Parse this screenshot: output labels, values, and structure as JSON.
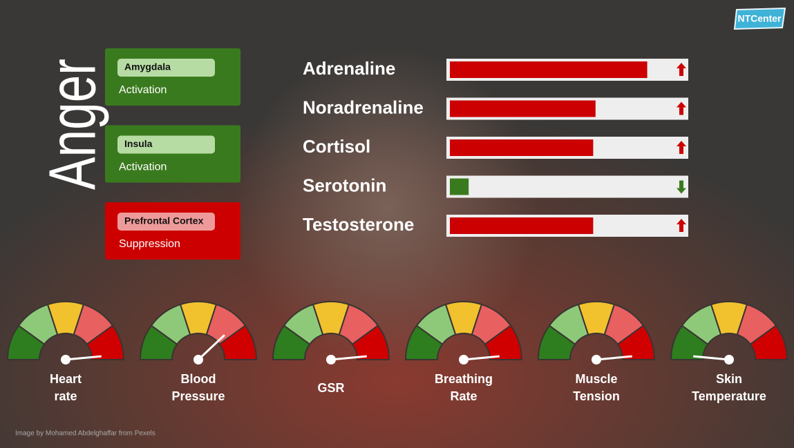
{
  "title": "Anger",
  "logo": "NTCenter",
  "credit": "Image by Mohamed Abdelghaffar from Pexels",
  "regions": [
    {
      "name": "Amygdala",
      "state": "Activation",
      "color": "#3a7a1e",
      "pill_color": "#b6dca4"
    },
    {
      "name": "Insula",
      "state": "Activation",
      "color": "#3a7a1e",
      "pill_color": "#b6dca4"
    },
    {
      "name": "Prefrontal Cortex",
      "state": "Suppression",
      "color": "#cc0000",
      "pill_color": "#ef9a9a"
    }
  ],
  "hormones": [
    {
      "name": "Adrenaline",
      "value": 84,
      "trend": "up",
      "color": "#cc0000"
    },
    {
      "name": "Noradrenaline",
      "value": 62,
      "trend": "up",
      "color": "#cc0000"
    },
    {
      "name": "Cortisol",
      "value": 61,
      "trend": "up",
      "color": "#cc0000"
    },
    {
      "name": "Serotonin",
      "value": 8,
      "trend": "down",
      "color": "#3a7a1e"
    },
    {
      "name": "Testosterone",
      "value": 61,
      "trend": "up",
      "color": "#cc0000"
    }
  ],
  "gauge_colors": [
    "#2e7d1e",
    "#8ec97a",
    "#f2c12e",
    "#e86060",
    "#d00000"
  ],
  "gauges": [
    {
      "lines": [
        "Heart",
        "rate"
      ],
      "value": 97
    },
    {
      "lines": [
        "Blood",
        "Pressure"
      ],
      "value": 76
    },
    {
      "lines": [
        "GSR"
      ],
      "value": 97
    },
    {
      "lines": [
        "Breathing",
        "Rate"
      ],
      "value": 97
    },
    {
      "lines": [
        "Muscle",
        "Tension"
      ],
      "value": 97
    },
    {
      "lines": [
        "Skin",
        "Temperature"
      ],
      "value": 3
    }
  ]
}
